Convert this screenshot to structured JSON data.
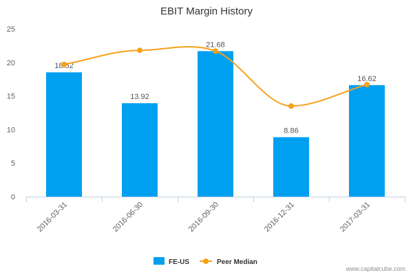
{
  "chart_data": {
    "type": "bar",
    "title": "EBIT Margin History",
    "categories": [
      "2016-03-31",
      "2016-06-30",
      "2016-09-30",
      "2016-12-31",
      "2017-03-31"
    ],
    "series": [
      {
        "name": "FE-US",
        "type": "bar",
        "color": "#00a0f0",
        "values": [
          18.52,
          13.92,
          21.68,
          8.86,
          16.62
        ],
        "labels": [
          "18.52",
          "13.92",
          "21.68",
          "8.86",
          "16.62"
        ]
      },
      {
        "name": "Peer Median",
        "type": "line",
        "color": "#f7a11a",
        "values": [
          19.7,
          21.8,
          21.7,
          13.5,
          16.7
        ]
      }
    ],
    "yticks": [
      "0",
      "5",
      "10",
      "15",
      "20",
      "25"
    ],
    "ylim": [
      0,
      25
    ],
    "xlabel": "",
    "ylabel": "",
    "grid": false,
    "legend_position": "bottom-center"
  },
  "credit": "www.capitalcube.com"
}
